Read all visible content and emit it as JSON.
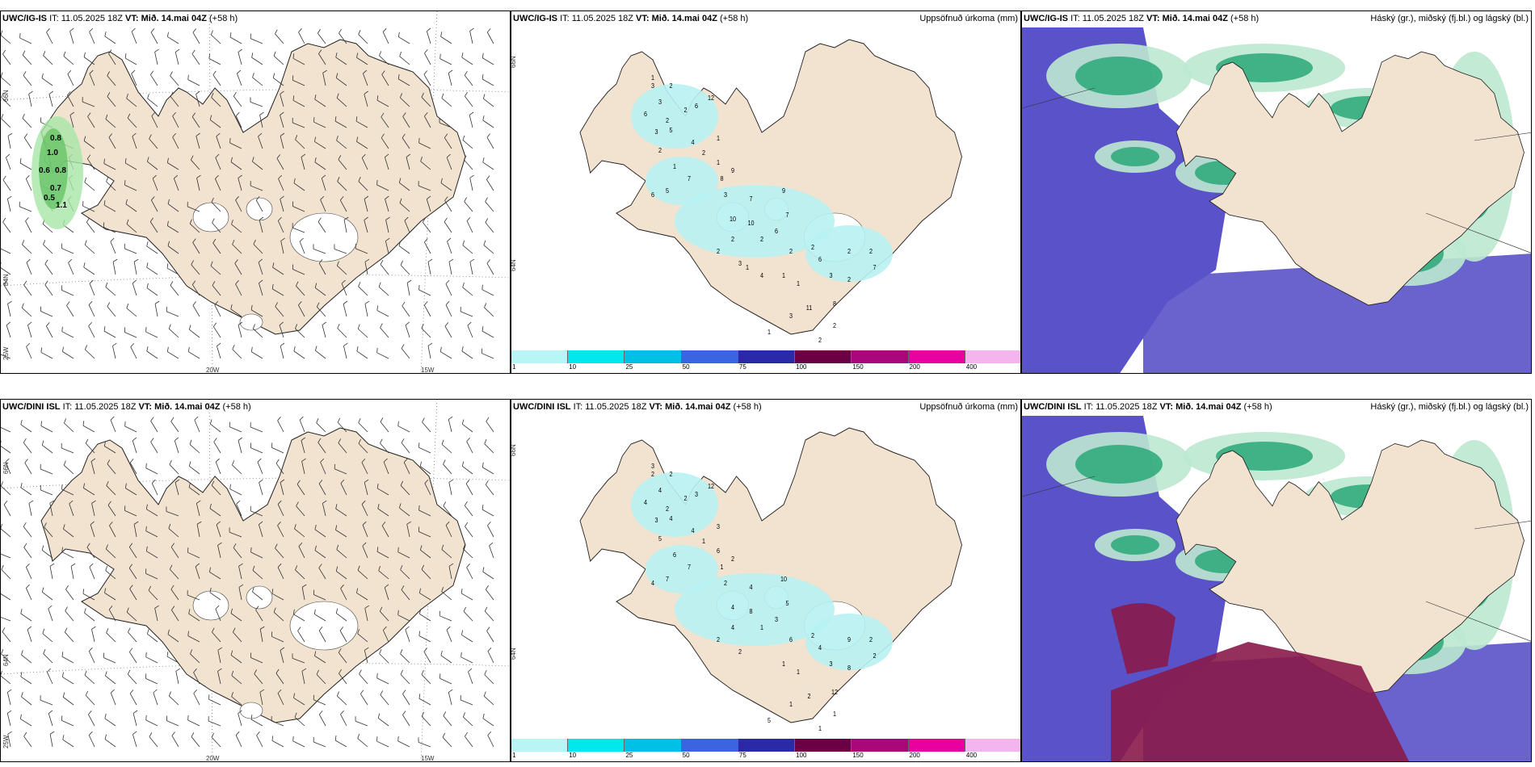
{
  "rows": [
    {
      "model": "UWC/IG-IS",
      "it": "IT: 11.05.2025 18Z",
      "vt_label": "VT:",
      "vt_value": "Mið. 14.mai 04Z",
      "lead": "(+58 h)"
    },
    {
      "model": "UWC/DINI ISL",
      "it": "IT: 11.05.2025 18Z",
      "vt_label": "VT:",
      "vt_value": "Mið. 14.mai 04Z",
      "lead": "(+58 h)"
    }
  ],
  "precip_title": "Uppsöfnuð úrkoma (mm)",
  "cloud_title": "Háský (gr.), miðský (fj.bl.) og lágský (bl.)",
  "axis": {
    "lat_66": "66N",
    "lat_64": "64N",
    "lon_25": "25W",
    "lon_20": "20W",
    "lon_15": "15W"
  },
  "legend": {
    "labels": [
      "1",
      "10",
      "25",
      "50",
      "75",
      "100",
      "150",
      "200",
      "400"
    ],
    "colors": [
      "#b8f6f6",
      "#00e8ee",
      "#00c0e6",
      "#3a64e0",
      "#2a2aa8",
      "#6b0045",
      "#a8087a",
      "#e800a0",
      "#f4b4ee"
    ]
  },
  "colors": {
    "land": "#f2e2d0",
    "precip": "#b8f2f2",
    "cloud_low": "#5a52c8",
    "cloud_mid": "#2aa878",
    "cloud_high": "#bde8d0",
    "dini_cloud": "#8a1a4a"
  },
  "wind_precip_labels_top": [
    "0.8",
    "1.0",
    "0.6",
    "0.8",
    "0.7",
    "0.5",
    "1.1"
  ],
  "precip_top_numbers": [
    "1",
    "3",
    "2",
    "3",
    "2",
    "6",
    "2",
    "6",
    "12",
    "5",
    "3",
    "4",
    "2",
    "1",
    "2",
    "1",
    "1",
    "7",
    "5",
    "6",
    "9",
    "8",
    "7",
    "3",
    "10",
    "10",
    "9",
    "7",
    "6",
    "2",
    "2",
    "2",
    "3",
    "2",
    "2",
    "6",
    "3",
    "2",
    "2",
    "7",
    "2",
    "8",
    "11",
    "3",
    "2",
    "1",
    "2",
    "1",
    "1",
    "4",
    "1"
  ],
  "precip_bottom_numbers": [
    "3",
    "2",
    "2",
    "4",
    "2",
    "4",
    "2",
    "3",
    "12",
    "4",
    "3",
    "4",
    "5",
    "3",
    "1",
    "6",
    "6",
    "7",
    "7",
    "4",
    "2",
    "1",
    "4",
    "2",
    "4",
    "8",
    "10",
    "5",
    "3",
    "1",
    "4",
    "2",
    "2",
    "6",
    "2",
    "4",
    "3",
    "9",
    "2",
    "2",
    "8",
    "12",
    "2",
    "1",
    "1",
    "5",
    "1",
    "1",
    "1"
  ]
}
